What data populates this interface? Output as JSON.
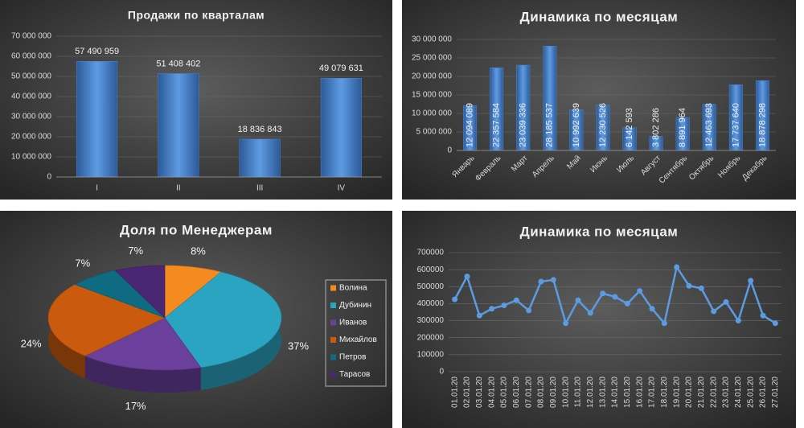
{
  "chart_data": [
    {
      "type": "bar",
      "title": "Продажи по кварталам",
      "categories": [
        "I",
        "II",
        "III",
        "IV"
      ],
      "values": [
        57490959,
        51408402,
        18836843,
        49079631
      ],
      "value_labels": [
        "57 490 959",
        "51 408 402",
        "18 836 843",
        "49 079 631"
      ],
      "color": "#4a86d4",
      "ylim": [
        0,
        70000000
      ],
      "yticks": [
        0,
        {
          "value": 10000000,
          "label": "10 000 000"
        },
        {
          "value": 20000000,
          "label": "20 000 000"
        },
        {
          "value": 30000000,
          "label": "30 000 000"
        },
        {
          "value": 40000000,
          "label": "40 000 000"
        },
        {
          "value": 50000000,
          "label": "50 000 000"
        },
        {
          "value": 60000000,
          "label": "60 000 000"
        },
        {
          "value": 70000000,
          "label": "70 000 000"
        }
      ],
      "grid": true
    },
    {
      "type": "bar",
      "title": "Динамика по месяцам",
      "categories": [
        "Январь",
        "Февраль",
        "Март",
        "Апрель",
        "Май",
        "Июнь",
        "Июль",
        "Август",
        "Сентябрь",
        "Октябрь",
        "Ноябрь",
        "Декабрь"
      ],
      "values": [
        12094089,
        22357584,
        23039336,
        28185537,
        10992639,
        12230526,
        6142593,
        3802286,
        8891964,
        12463693,
        17737640,
        18878298
      ],
      "value_labels": [
        "12 094 089",
        "22 357 584",
        "23 039 336",
        "28 185 537",
        "10 992 639",
        "12 230 526",
        "6 142 593",
        "3 802 286",
        "8 891 964",
        "12 463 693",
        "17 737 640",
        "18 878 298"
      ],
      "color": "#4a86d4",
      "ylim": [
        0,
        30000000
      ],
      "yticks": [
        0,
        {
          "value": 5000000,
          "label": "5 000 000"
        },
        {
          "value": 10000000,
          "label": "10 000 000"
        },
        {
          "value": 15000000,
          "label": "15 000 000"
        },
        {
          "value": 20000000,
          "label": "20 000 000"
        },
        {
          "value": 25000000,
          "label": "25 000 000"
        },
        {
          "value": 30000000,
          "label": "30 000 000"
        }
      ],
      "grid": true
    },
    {
      "type": "pie",
      "title": "Доля по Менеджерам",
      "categories": [
        "Волина",
        "Дубинин",
        "Иванов",
        "Михайлов",
        "Петров",
        "Тарасов"
      ],
      "values": [
        8,
        37,
        17,
        24,
        7,
        7
      ],
      "value_labels": [
        "8%",
        "37%",
        "17%",
        "24%",
        "7%",
        "7%"
      ],
      "colors": [
        "#f58a1f",
        "#2ba4c2",
        "#6b3f9c",
        "#c95a0e",
        "#0f6b82",
        "#4b2672"
      ],
      "legend": "right"
    },
    {
      "type": "line",
      "title": "Динамика  по месяцам",
      "categories": [
        "01.01.20",
        "02.01.20",
        "03.01.20",
        "04.01.20",
        "05.01.20",
        "06.01.20",
        "07.01.20",
        "08.01.20",
        "09.01.20",
        "10.01.20",
        "11.01.20",
        "12.01.20",
        "13.01.20",
        "14.01.20",
        "15.01.20",
        "16.01.20",
        "17.01.20",
        "18.01.20",
        "19.01.20",
        "20.01.20",
        "21.01.20",
        "22.01.20",
        "23.01.20",
        "24.01.20",
        "25.01.20",
        "26.01.20",
        "27.01.20"
      ],
      "values": [
        425000,
        560000,
        330000,
        370000,
        390000,
        420000,
        360000,
        530000,
        540000,
        285000,
        420000,
        345000,
        460000,
        440000,
        400000,
        475000,
        370000,
        285000,
        615000,
        505000,
        490000,
        355000,
        410000,
        300000,
        535000,
        330000,
        285000
      ],
      "color": "#5b9be0",
      "ylim": [
        0,
        700000
      ],
      "yticks": [
        0,
        100000,
        200000,
        300000,
        400000,
        500000,
        600000,
        700000
      ],
      "grid": true
    }
  ]
}
